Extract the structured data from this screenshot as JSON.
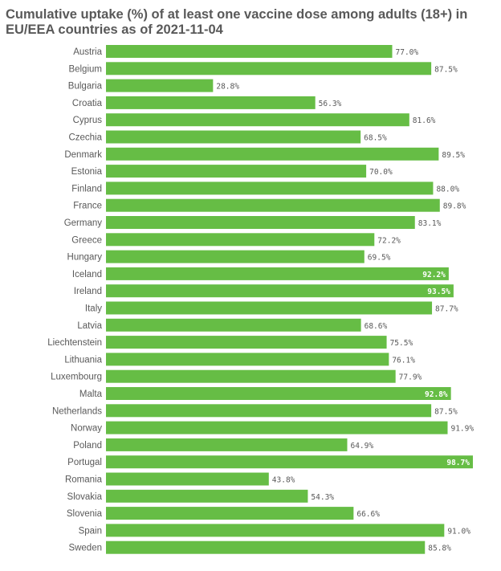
{
  "chart_data": {
    "type": "bar",
    "orientation": "horizontal",
    "title": "Cumulative uptake (%) of at least one vaccine dose among adults (18+) in EU/EEA countries as of 2021-11-04",
    "categories": [
      "Austria",
      "Belgium",
      "Bulgaria",
      "Croatia",
      "Cyprus",
      "Czechia",
      "Denmark",
      "Estonia",
      "Finland",
      "France",
      "Germany",
      "Greece",
      "Hungary",
      "Iceland",
      "Ireland",
      "Italy",
      "Latvia",
      "Liechtenstein",
      "Lithuania",
      "Luxembourg",
      "Malta",
      "Netherlands",
      "Norway",
      "Poland",
      "Portugal",
      "Romania",
      "Slovakia",
      "Slovenia",
      "Spain",
      "Sweden"
    ],
    "values": [
      77.0,
      87.5,
      28.8,
      56.3,
      81.6,
      68.5,
      89.5,
      70.0,
      88.0,
      89.8,
      83.1,
      72.2,
      69.5,
      92.2,
      93.5,
      87.7,
      68.6,
      75.5,
      76.1,
      77.9,
      92.8,
      87.5,
      91.9,
      64.9,
      98.7,
      43.8,
      54.3,
      66.6,
      91.0,
      85.8
    ],
    "value_labels": [
      "77.0%",
      "87.5%",
      "28.8%",
      "56.3%",
      "81.6%",
      "68.5%",
      "89.5%",
      "70.0%",
      "88.0%",
      "89.8%",
      "83.1%",
      "72.2%",
      "69.5%",
      "92.2%",
      "93.5%",
      "87.7%",
      "68.6%",
      "75.5%",
      "76.1%",
      "77.9%",
      "92.8%",
      "87.5%",
      "91.9%",
      "64.9%",
      "98.7%",
      "43.8%",
      "54.3%",
      "66.6%",
      "91.0%",
      "85.8%"
    ],
    "xlim": [
      0,
      100
    ],
    "grid": false,
    "legend": "none",
    "colors": {
      "bar": "#66bd45",
      "label_outside": "#595959",
      "label_inside": "#ffffff"
    }
  }
}
